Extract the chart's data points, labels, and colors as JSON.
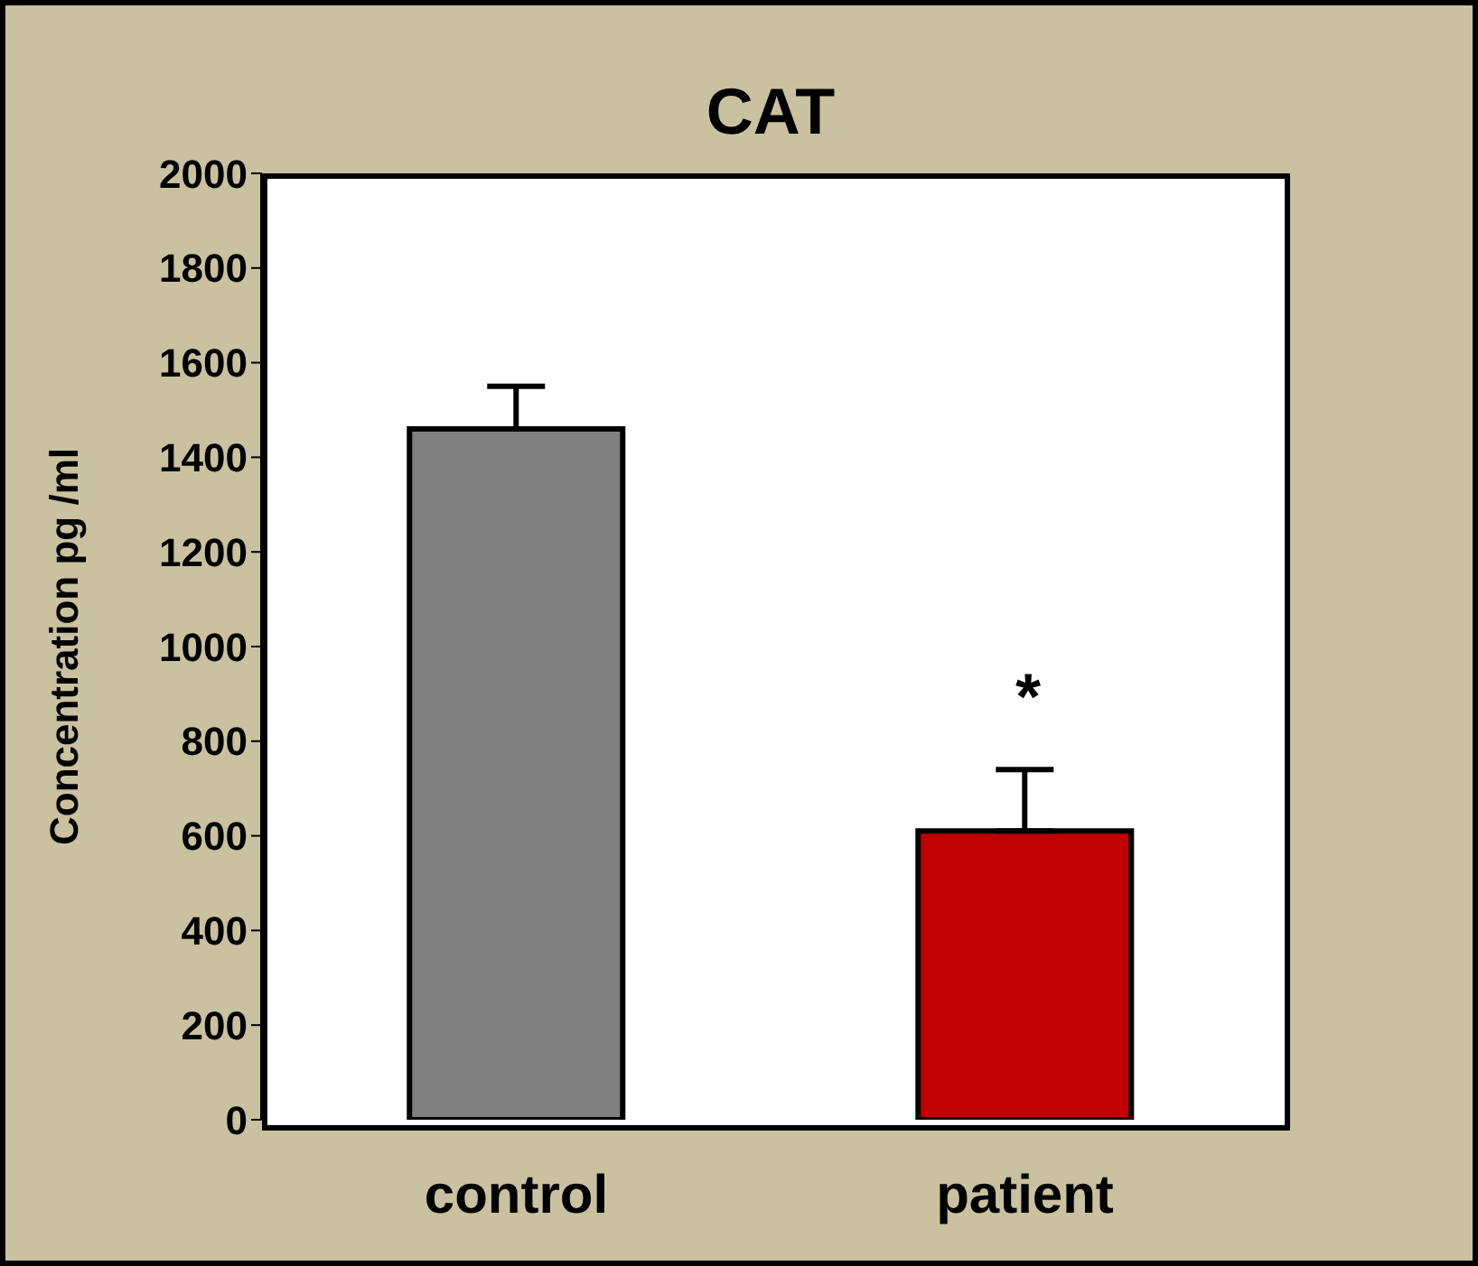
{
  "chart_data": {
    "type": "bar",
    "title": "CAT",
    "ylabel": "Concentration pg /ml",
    "categories": [
      "control",
      "patient"
    ],
    "values": [
      1460,
      610
    ],
    "colors": [
      "#808080",
      "#c00000"
    ],
    "errors": [
      [
        1460,
        1550
      ],
      [
        610,
        740
      ]
    ],
    "ylim": [
      0,
      2000
    ],
    "yticks": [
      0,
      200,
      400,
      600,
      800,
      1000,
      1200,
      1400,
      1600,
      1800,
      2000
    ],
    "grid": false,
    "legend": false,
    "annotations": [
      "*"
    ]
  }
}
